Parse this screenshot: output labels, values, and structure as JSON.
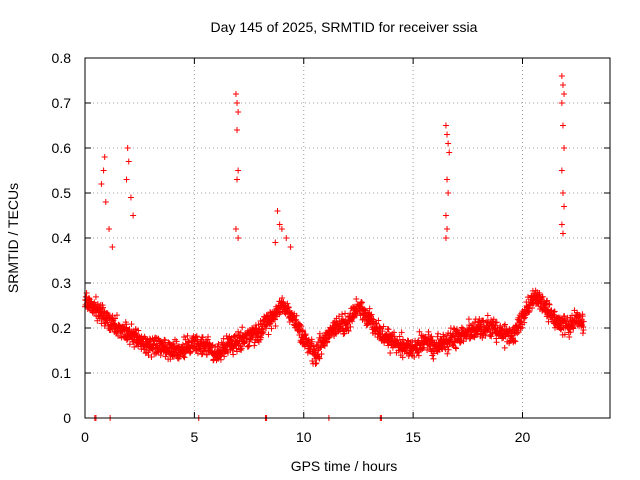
{
  "chart_data": {
    "type": "scatter",
    "title": "Day 145 of 2025, SRMTID for receiver ssia",
    "xlabel": "GPS time / hours",
    "ylabel": "SRMTID / TECUs",
    "xlim": [
      0,
      24
    ],
    "ylim": [
      0,
      0.8
    ],
    "x_ticks": [
      "0",
      "5",
      "10",
      "15",
      "20"
    ],
    "y_ticks": [
      "0",
      "0.1",
      "0.2",
      "0.3",
      "0.4",
      "0.5",
      "0.6",
      "0.7",
      "0.8"
    ],
    "grid": true,
    "marker": "+",
    "color": "#ff0000",
    "series": [
      {
        "name": "SRMTID",
        "baseline": [
          [
            0.0,
            0.26
          ],
          [
            0.5,
            0.24
          ],
          [
            1.0,
            0.22
          ],
          [
            1.5,
            0.2
          ],
          [
            2.0,
            0.19
          ],
          [
            2.5,
            0.17
          ],
          [
            3.0,
            0.16
          ],
          [
            3.5,
            0.16
          ],
          [
            4.0,
            0.15
          ],
          [
            4.5,
            0.15
          ],
          [
            5.0,
            0.17
          ],
          [
            5.5,
            0.16
          ],
          [
            6.0,
            0.14
          ],
          [
            6.5,
            0.16
          ],
          [
            7.0,
            0.17
          ],
          [
            7.5,
            0.18
          ],
          [
            8.0,
            0.19
          ],
          [
            8.5,
            0.22
          ],
          [
            9.0,
            0.25
          ],
          [
            9.5,
            0.22
          ],
          [
            10.0,
            0.18
          ],
          [
            10.5,
            0.14
          ],
          [
            11.0,
            0.18
          ],
          [
            11.5,
            0.2
          ],
          [
            12.0,
            0.21
          ],
          [
            12.5,
            0.25
          ],
          [
            13.0,
            0.22
          ],
          [
            13.5,
            0.19
          ],
          [
            14.0,
            0.17
          ],
          [
            14.5,
            0.16
          ],
          [
            15.0,
            0.15
          ],
          [
            15.5,
            0.17
          ],
          [
            16.0,
            0.16
          ],
          [
            16.5,
            0.17
          ],
          [
            17.0,
            0.18
          ],
          [
            17.5,
            0.19
          ],
          [
            18.0,
            0.2
          ],
          [
            18.5,
            0.2
          ],
          [
            19.0,
            0.19
          ],
          [
            19.5,
            0.18
          ],
          [
            20.0,
            0.22
          ],
          [
            20.5,
            0.27
          ],
          [
            21.0,
            0.25
          ],
          [
            21.5,
            0.22
          ],
          [
            22.0,
            0.2
          ],
          [
            22.5,
            0.22
          ],
          [
            22.8,
            0.21
          ]
        ],
        "spikes": [
          [
            0.9,
            0.58
          ],
          [
            0.85,
            0.55
          ],
          [
            0.75,
            0.52
          ],
          [
            0.95,
            0.48
          ],
          [
            1.1,
            0.42
          ],
          [
            1.25,
            0.38
          ],
          [
            1.95,
            0.6
          ],
          [
            2.0,
            0.57
          ],
          [
            1.9,
            0.53
          ],
          [
            2.1,
            0.49
          ],
          [
            2.2,
            0.45
          ],
          [
            6.9,
            0.72
          ],
          [
            6.95,
            0.7
          ],
          [
            7.0,
            0.68
          ],
          [
            6.95,
            0.64
          ],
          [
            7.0,
            0.55
          ],
          [
            6.95,
            0.53
          ],
          [
            6.9,
            0.42
          ],
          [
            7.0,
            0.4
          ],
          [
            8.8,
            0.46
          ],
          [
            8.9,
            0.43
          ],
          [
            9.0,
            0.42
          ],
          [
            9.2,
            0.4
          ],
          [
            9.4,
            0.38
          ],
          [
            8.7,
            0.39
          ],
          [
            16.5,
            0.65
          ],
          [
            16.55,
            0.63
          ],
          [
            16.6,
            0.61
          ],
          [
            16.65,
            0.59
          ],
          [
            16.55,
            0.53
          ],
          [
            16.6,
            0.5
          ],
          [
            16.5,
            0.45
          ],
          [
            16.55,
            0.42
          ],
          [
            16.5,
            0.4
          ],
          [
            21.8,
            0.76
          ],
          [
            21.85,
            0.74
          ],
          [
            21.9,
            0.72
          ],
          [
            21.8,
            0.7
          ],
          [
            21.85,
            0.65
          ],
          [
            21.9,
            0.6
          ],
          [
            21.8,
            0.55
          ],
          [
            21.85,
            0.5
          ],
          [
            21.9,
            0.47
          ],
          [
            21.8,
            0.43
          ],
          [
            21.85,
            0.41
          ]
        ],
        "zero_points": [
          0.45,
          0.5,
          1.15,
          5.2,
          8.25,
          8.3,
          11.15,
          13.5,
          13.55
        ]
      }
    ]
  }
}
